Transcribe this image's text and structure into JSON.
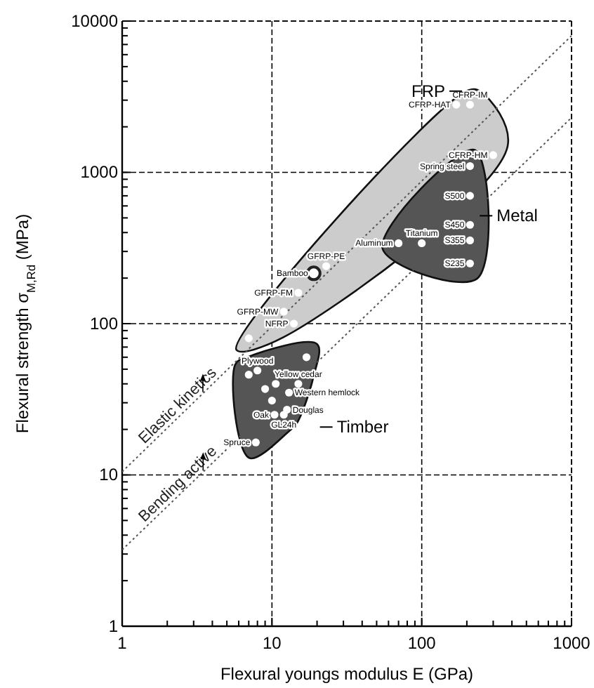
{
  "chart_data": {
    "type": "scatter",
    "xlabel": "Flexural youngs modulus E (GPa)",
    "ylabel": "Flexural strength σ$_{M,Rd}$ (MPa)",
    "log": "xy",
    "grid": true,
    "marker": "circle",
    "xlim": [
      1,
      1000
    ],
    "ylim": [
      1,
      10000
    ],
    "xticks": [
      1,
      {
        "value": 2,
        "label": null
      },
      {
        "value": 3,
        "label": null
      },
      {
        "value": 4,
        "label": null
      },
      {
        "value": 5,
        "label": null
      },
      {
        "value": 6,
        "label": null
      },
      {
        "value": 7,
        "label": null
      },
      {
        "value": 8,
        "label": null
      },
      {
        "value": 9,
        "label": null
      },
      10,
      {
        "value": 20,
        "label": null
      },
      {
        "value": 30,
        "label": null
      },
      {
        "value": 40,
        "label": null
      },
      {
        "value": 50,
        "label": null
      },
      {
        "value": 60,
        "label": null
      },
      {
        "value": 70,
        "label": null
      },
      {
        "value": 80,
        "label": null
      },
      {
        "value": 90,
        "label": null
      },
      100,
      {
        "value": 200,
        "label": null
      },
      {
        "value": 300,
        "label": null
      },
      {
        "value": 400,
        "label": null
      },
      {
        "value": 500,
        "label": null
      },
      {
        "value": 600,
        "label": null
      },
      {
        "value": 700,
        "label": null
      },
      {
        "value": 800,
        "label": null
      },
      {
        "value": 900,
        "label": null
      },
      1000
    ],
    "yticks": [
      1,
      {
        "value": 2,
        "label": null
      },
      {
        "value": 3,
        "label": null
      },
      {
        "value": 4,
        "label": null
      },
      {
        "value": 5,
        "label": null
      },
      {
        "value": 6,
        "label": null
      },
      {
        "value": 7,
        "label": null
      },
      {
        "value": 8,
        "label": null
      },
      {
        "value": 9,
        "label": null
      },
      10,
      {
        "value": 20,
        "label": null
      },
      {
        "value": 30,
        "label": null
      },
      {
        "value": 40,
        "label": null
      },
      {
        "value": 50,
        "label": null
      },
      {
        "value": 60,
        "label": null
      },
      {
        "value": 70,
        "label": null
      },
      {
        "value": 80,
        "label": null
      },
      {
        "value": 90,
        "label": null
      },
      100,
      {
        "value": 200,
        "label": null
      },
      {
        "value": 300,
        "label": null
      },
      {
        "value": 400,
        "label": null
      },
      {
        "value": 500,
        "label": null
      },
      {
        "value": 600,
        "label": null
      },
      {
        "value": 700,
        "label": null
      },
      {
        "value": 800,
        "label": null
      },
      {
        "value": 900,
        "label": null
      },
      1000,
      {
        "value": 2000,
        "label": null
      },
      {
        "value": 3000,
        "label": null
      },
      {
        "value": 4000,
        "label": null
      },
      {
        "value": 5000,
        "label": null
      },
      {
        "value": 6000,
        "label": null
      },
      {
        "value": 7000,
        "label": null
      },
      {
        "value": 8000,
        "label": null
      },
      {
        "value": 9000,
        "label": null
      },
      10000
    ],
    "series": [
      {
        "name": "Elastic kinetics",
        "type": "line",
        "marker": "none",
        "line_style": "dotted",
        "color": "#555555",
        "x": [
          1,
          1000
        ],
        "values": [
          10.5,
          8000
        ]
      },
      {
        "name": "Bending active",
        "type": "line",
        "marker": "none",
        "line_style": "dotted",
        "color": "#555555",
        "x": [
          1,
          1000
        ],
        "values": [
          3.2,
          2300
        ]
      },
      {
        "name": "FRP",
        "color": "#ffffff",
        "x": [
          170,
          210,
          300,
          23,
          15,
          12,
          14,
          7
        ],
        "values": [
          2800,
          2800,
          1300,
          240,
          160,
          120,
          100,
          80
        ]
      },
      {
        "color": "#222222",
        "marker": "circle",
        "x": [
          19
        ],
        "values": [
          215
        ]
      },
      {
        "name": "Metal",
        "color": "#ffffff",
        "x": [
          210,
          210,
          210,
          210,
          210,
          70,
          100
        ],
        "values": [
          1100,
          700,
          450,
          355,
          250,
          340,
          340
        ]
      },
      {
        "name": "Timber",
        "color": "#ffffff",
        "x": [
          17,
          8,
          7,
          10.6,
          15,
          9,
          13,
          10,
          12.6,
          10.4,
          12,
          7.8
        ],
        "values": [
          60,
          49,
          46,
          40,
          40,
          37,
          35,
          31,
          27,
          25,
          25,
          16.4
        ]
      }
    ],
    "annotations": [
      {
        "text": "CFRP-HAT",
        "x": 170,
        "y": 2800
      },
      {
        "text": "CFRP-IM",
        "x": 210,
        "y": 2800
      },
      {
        "text": "CFRP-HM",
        "x": 300,
        "y": 1300
      },
      {
        "text": "Spring steel",
        "x": 210,
        "y": 1100
      },
      {
        "text": "S500",
        "x": 210,
        "y": 700
      },
      {
        "text": "S450",
        "x": 210,
        "y": 450
      },
      {
        "text": "S355",
        "x": 210,
        "y": 355
      },
      {
        "text": "S235",
        "x": 210,
        "y": 250
      },
      {
        "text": "Aluminum",
        "x": 70,
        "y": 340
      },
      {
        "text": "Titanium",
        "x": 100,
        "y": 340
      },
      {
        "text": "GFRP-PE",
        "x": 23,
        "y": 240
      },
      {
        "text": "Bamboo",
        "x": 19,
        "y": 215
      },
      {
        "text": "GFRP-FM",
        "x": 15,
        "y": 160
      },
      {
        "text": "GFRP-MW",
        "x": 12,
        "y": 120
      },
      {
        "text": "NFRP",
        "x": 14,
        "y": 100
      },
      {
        "text": "Plywood",
        "x": 8,
        "y": 49
      },
      {
        "text": "Yellow cedar",
        "x": 15,
        "y": 40
      },
      {
        "text": "Western hemlock",
        "x": 13,
        "y": 35
      },
      {
        "text": "Douglas",
        "x": 12.6,
        "y": 27
      },
      {
        "text": "Oak",
        "x": 10.4,
        "y": 25
      },
      {
        "text": "GL24h",
        "x": 12,
        "y": 25
      },
      {
        "text": "Spruce",
        "x": 7.8,
        "y": 16.4
      }
    ]
  }
}
